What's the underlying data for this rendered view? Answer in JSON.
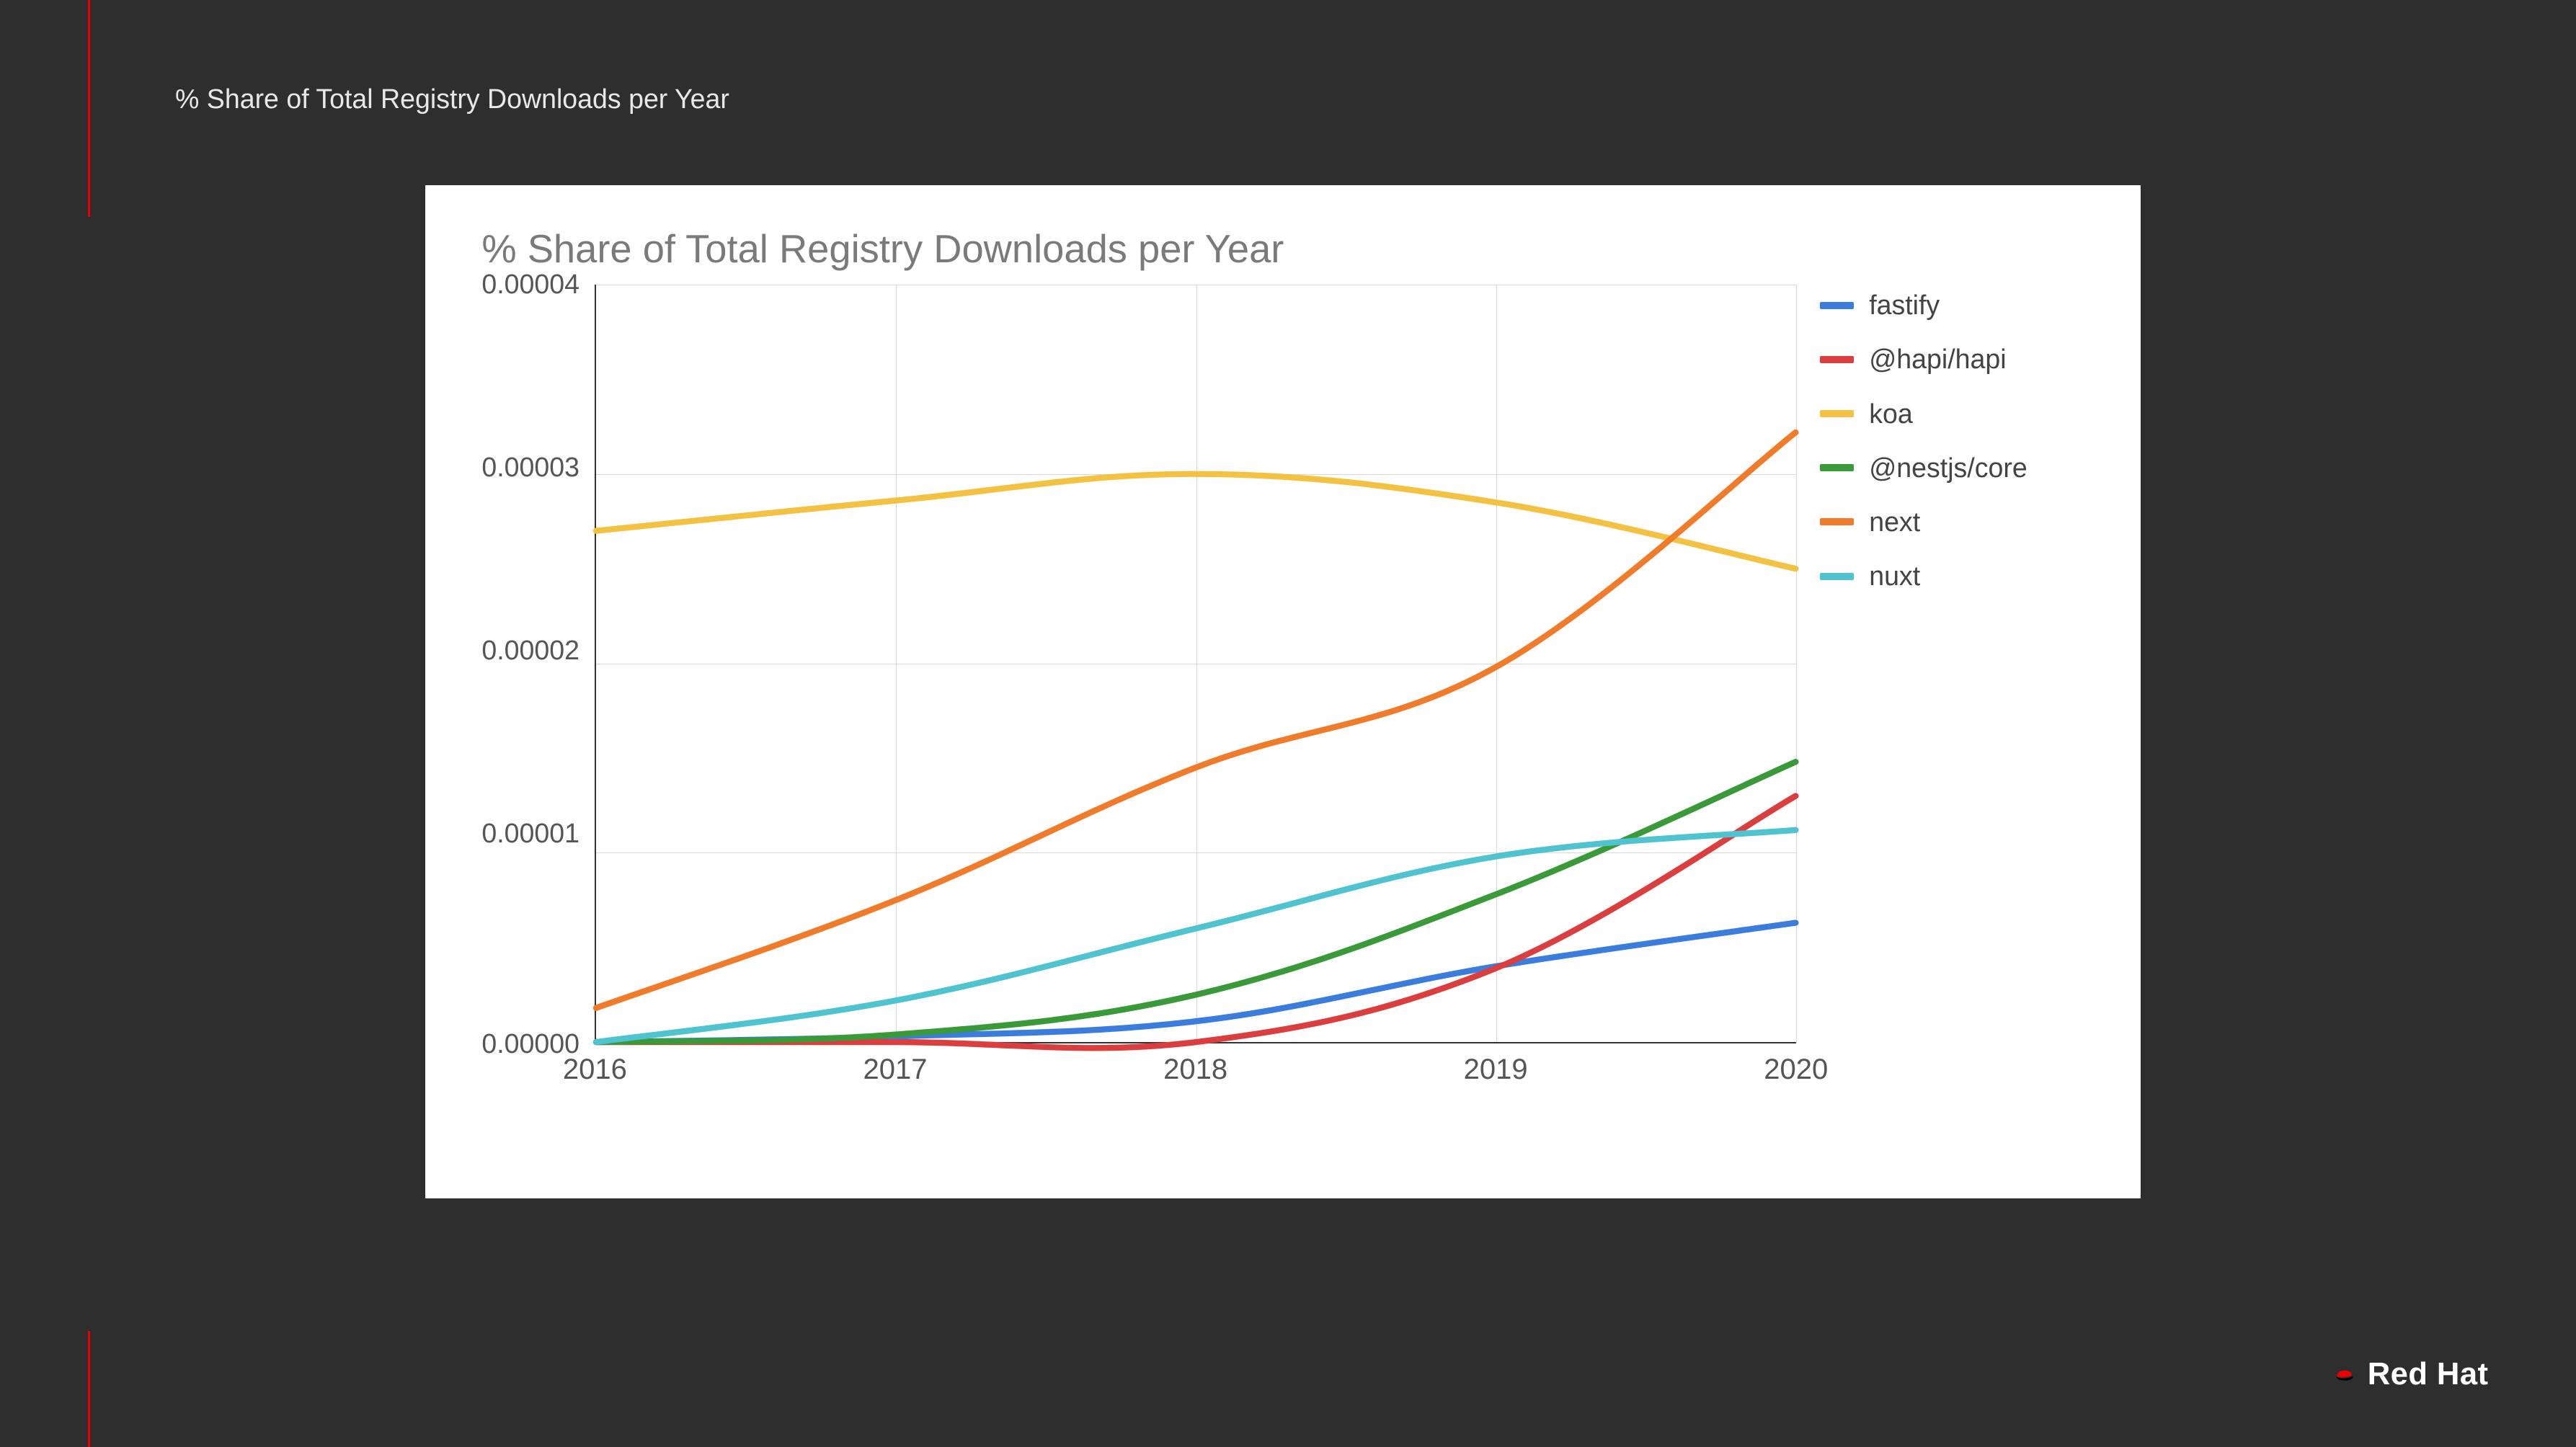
{
  "slide": {
    "title": "% Share of Total Registry Downloads per Year",
    "background_color": "#2e2e2e",
    "accent_color": "#ee0000"
  },
  "logo": {
    "text": "Red Hat",
    "icon_color": "#ee0000",
    "text_color": "#ffffff"
  },
  "chart": {
    "type": "line",
    "title": "% Share of Total Registry Downloads per Year",
    "title_color": "#7a7a7a",
    "title_fontsize_pt": 24,
    "background_color": "#ffffff",
    "grid_color": "#d9d9d9",
    "axis_color": "#333333",
    "tick_label_color": "#555555",
    "tick_fontsize_pt": 16,
    "x": {
      "values": [
        2016,
        2017,
        2018,
        2019,
        2020
      ],
      "labels": [
        "2016",
        "2017",
        "2018",
        "2019",
        "2020"
      ],
      "lim": [
        2016,
        2020
      ]
    },
    "y": {
      "lim": [
        0,
        4e-05
      ],
      "ticks": [
        4e-05,
        3e-05,
        2e-05,
        1e-05,
        0.0
      ],
      "labels": [
        "0.00004",
        "0.00003",
        "0.00002",
        "0.00001",
        "0.00000"
      ]
    },
    "line_width": 2.6,
    "series": [
      {
        "name": "fastify",
        "color": "#3b7ddd",
        "values": [
          0.0,
          3e-07,
          1.1e-06,
          4e-06,
          6.3e-06
        ]
      },
      {
        "name": "@hapi/hapi",
        "color": "#db3e3e",
        "values": [
          0.0,
          0.0,
          0.0,
          3.9e-06,
          1.3e-05
        ]
      },
      {
        "name": "koa",
        "color": "#f4c242",
        "values": [
          2.7e-05,
          2.86e-05,
          3e-05,
          2.85e-05,
          2.5e-05
        ]
      },
      {
        "name": "@nestjs/core",
        "color": "#3a9a3a",
        "values": [
          0.0,
          4e-07,
          2.5e-06,
          7.8e-06,
          1.48e-05
        ]
      },
      {
        "name": "next",
        "color": "#f07b2a",
        "values": [
          1.8e-06,
          7.5e-06,
          1.45e-05,
          1.98e-05,
          3.22e-05
        ]
      },
      {
        "name": "nuxt",
        "color": "#4fc3cf",
        "values": [
          0.0,
          2.2e-06,
          6e-06,
          9.8e-06,
          1.12e-05
        ]
      }
    ]
  }
}
